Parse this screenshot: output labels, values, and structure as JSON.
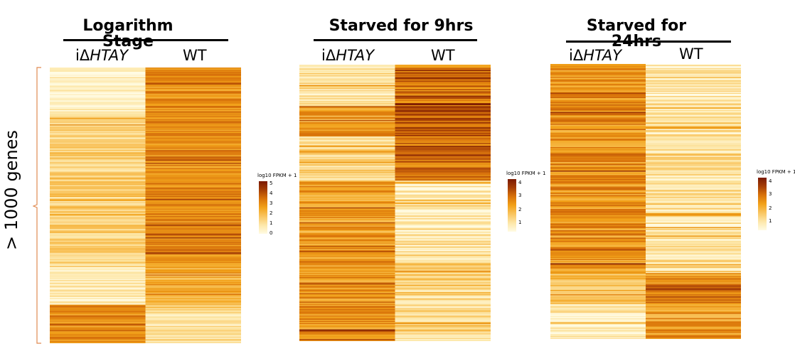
{
  "y_label": "> 1000 genes",
  "chart_data": [
    {
      "type": "heatmap",
      "title": "Logarithm\nStage",
      "columns": [
        "iΔHTAY",
        "WT"
      ],
      "legend_title": "log10 FPKM + 1",
      "legend_ticks": [
        "5",
        "4",
        "3",
        "2",
        "1",
        "0"
      ],
      "blocks": [
        {
          "rows": 0.16,
          "values": [
            0.4,
            2.8
          ]
        },
        {
          "rows": 0.56,
          "values": [
            1.3,
            2.9
          ]
        },
        {
          "rows": 0.14,
          "values": [
            0.6,
            2.2
          ]
        },
        {
          "rows": 0.14,
          "values": [
            2.8,
            0.9
          ]
        }
      ]
    },
    {
      "type": "heatmap",
      "title": "Starved for 9hrs",
      "columns": [
        "iΔHTAY",
        "WT"
      ],
      "legend_title": "log10 FPKM + 1",
      "legend_ticks": [
        "4",
        "3",
        "2",
        "1"
      ],
      "blocks": [
        {
          "rows": 0.15,
          "values": [
            0.7,
            2.6
          ]
        },
        {
          "rows": 0.11,
          "values": [
            2.0,
            3.0
          ]
        },
        {
          "rows": 0.16,
          "values": [
            0.9,
            2.6
          ]
        },
        {
          "rows": 0.26,
          "values": [
            2.0,
            0.4
          ]
        },
        {
          "rows": 0.32,
          "values": [
            2.2,
            1.0
          ]
        }
      ]
    },
    {
      "type": "heatmap",
      "title": "Starved for\n24hrs",
      "columns": [
        "iΔHTAY",
        "WT"
      ],
      "legend_title": "log10 FPKM + 1",
      "legend_ticks": [
        "4",
        "3",
        "2",
        "1"
      ],
      "blocks": [
        {
          "rows": 0.76,
          "values": [
            2.2,
            0.6
          ]
        },
        {
          "rows": 0.11,
          "values": [
            1.4,
            2.3
          ]
        },
        {
          "rows": 0.13,
          "values": [
            0.5,
            2.1
          ]
        }
      ]
    }
  ],
  "colors": {
    "scale": [
      "#fffbe3",
      "#fde7a8",
      "#f9c560",
      "#f2a219",
      "#d9730a",
      "#a63f05",
      "#7a1a02"
    ],
    "brace": "#e08a50"
  }
}
